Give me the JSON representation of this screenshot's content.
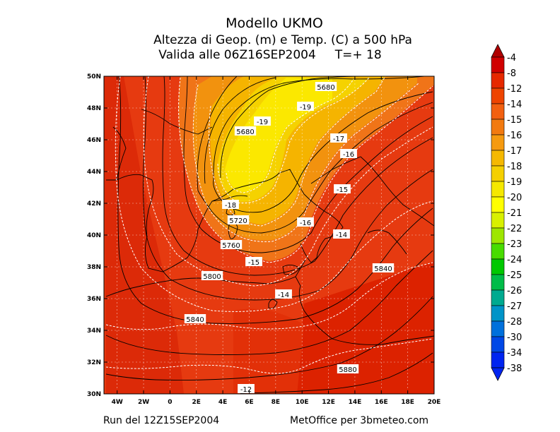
{
  "title": {
    "line1": "Modello UKMO",
    "line2": "Altezza di Geop. (m) e Temp. (C) a 500 hPa",
    "line3": "Valida alle 06Z16SEP2004     T=+ 18"
  },
  "footer": {
    "run": "Run del 12Z15SEP2004",
    "credit": "MetOffice per 3bmeteo.com"
  },
  "map": {
    "lon_labels": [
      "4W",
      "2W",
      "0",
      "2E",
      "4E",
      "6E",
      "8E",
      "10E",
      "12E",
      "14E",
      "16E",
      "18E",
      "20E"
    ],
    "lat_labels": [
      "50N",
      "48N",
      "46N",
      "44N",
      "42N",
      "40N",
      "38N",
      "36N",
      "34N",
      "32N",
      "30N"
    ],
    "geopotential_labels": [
      "5680",
      "5680",
      "5720",
      "5760",
      "5800",
      "5840",
      "5840",
      "5880"
    ],
    "temperature_labels": [
      "-19",
      "-19",
      "-18",
      "-17",
      "-16",
      "-16",
      "-15",
      "-15",
      "-14",
      "-14",
      "-12"
    ]
  },
  "colorbar": {
    "labels": [
      "-4",
      "-8",
      "-12",
      "-14",
      "-15",
      "-16",
      "-17",
      "-18",
      "-19",
      "-20",
      "-21",
      "-22",
      "-23",
      "-24",
      "-25",
      "-26",
      "-27",
      "-28",
      "-30",
      "-34",
      "-38"
    ],
    "colors": [
      "#b00000",
      "#d00000",
      "#e62800",
      "#ee4400",
      "#f26010",
      "#f27a10",
      "#f59a10",
      "#f5b800",
      "#f5d000",
      "#f5e800",
      "#ffff00",
      "#d8f000",
      "#9ee600",
      "#48dc00",
      "#00c800",
      "#00bc48",
      "#00aa90",
      "#0094c8",
      "#0070dc",
      "#0048e6",
      "#0024f0"
    ]
  }
}
